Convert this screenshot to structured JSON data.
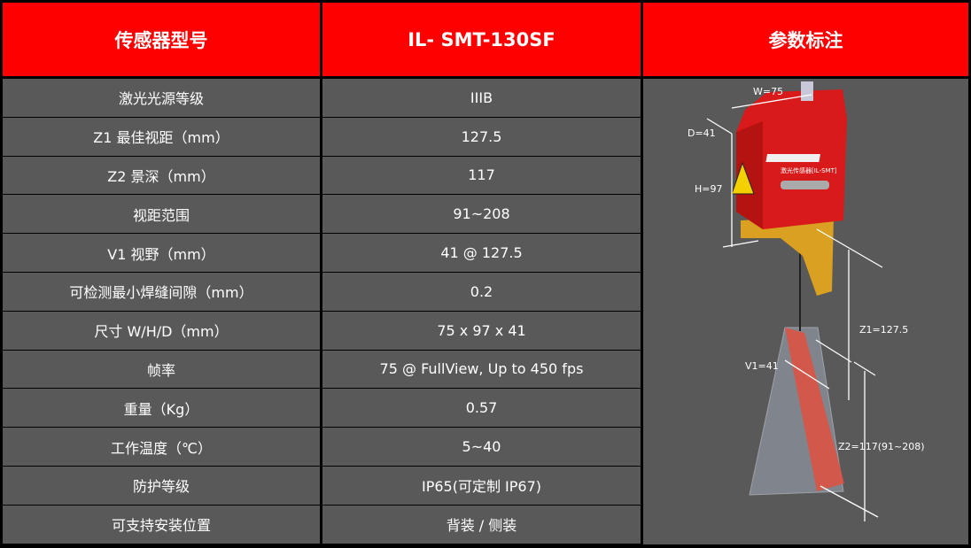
{
  "header": {
    "col1": "传感器型号",
    "col2": "IL- SMT-130SF",
    "col3": "参数标注"
  },
  "rows": [
    {
      "label": "激光光源等级",
      "value": "IIIB"
    },
    {
      "label": "Z1 最佳视距（mm）",
      "value": "127.5"
    },
    {
      "label": "Z2 景深（mm）",
      "value": "117"
    },
    {
      "label": "视距范围",
      "value": "91~208"
    },
    {
      "label": "V1 视野（mm）",
      "value": "41 @ 127.5"
    },
    {
      "label": "可检测最小焊缝间隙（mm）",
      "value": "0.2"
    },
    {
      "label": "尺寸 W/H/D（mm）",
      "value": "75 x 97 x 41"
    },
    {
      "label": "帧率",
      "value": "75 @ FullView, Up to 450 fps"
    },
    {
      "label": "重量（Kg）",
      "value": "0.57"
    },
    {
      "label": "工作温度（℃）",
      "value": "5~40"
    },
    {
      "label": "防护等级",
      "value": "IP65(可定制 IP67)"
    },
    {
      "label": "可支持安装位置",
      "value": "背装 / 侧装"
    }
  ],
  "diagram": {
    "w": "W=75",
    "d": "D=41",
    "h": "H=97",
    "z1": "Z1=127.5",
    "v1": "V1=41",
    "z2": "Z2=117(91~208)",
    "logo_text": "激光传感器[IL-SMT]"
  },
  "colors": {
    "header_bg": "#ff0000",
    "cell_bg": "#5a5959",
    "sensor_red": "#d91a1a",
    "bracket": "#d9a021"
  }
}
